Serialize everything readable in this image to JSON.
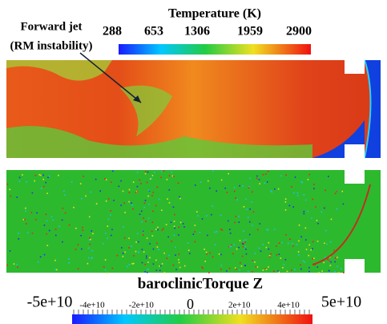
{
  "top_colorbar": {
    "title": "Temperature (K)",
    "ticks": [
      "288",
      "653",
      "1306",
      "1959",
      "2900"
    ]
  },
  "annotation": {
    "line1": "Forward jet",
    "line2": "(RM instability)"
  },
  "bottom_colorbar": {
    "title": "baroclinicTorque Z",
    "min_label": "-5e+10",
    "max_label": "5e+10",
    "ticks": [
      "-4e+10",
      "-2e+10",
      "0",
      "2e+10",
      "4e+10"
    ]
  }
}
